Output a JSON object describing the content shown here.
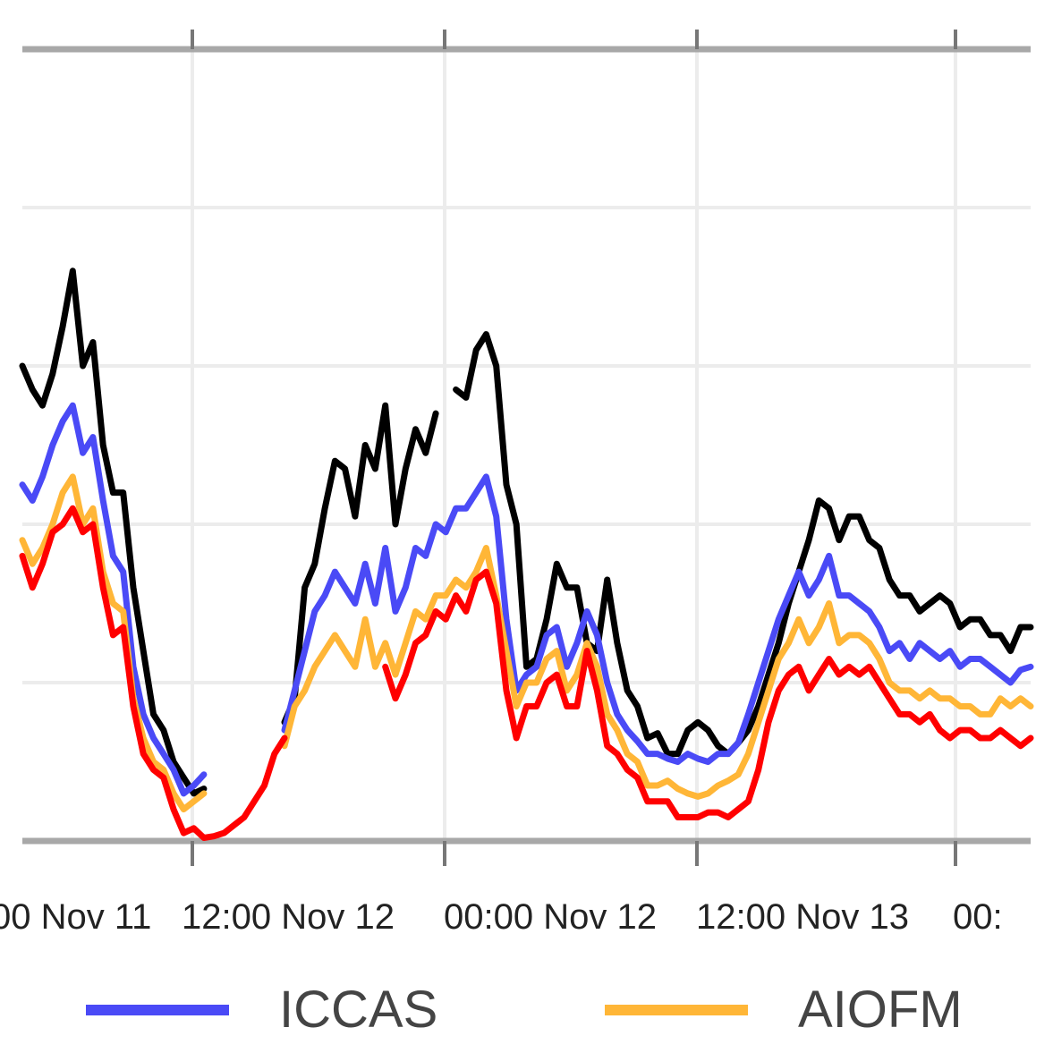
{
  "chart_data": {
    "type": "line",
    "title": "",
    "xlabel": "",
    "ylabel": "",
    "x_tick_labels": [
      "00 Nov 11",
      "12:00 Nov 12",
      "00:00 Nov 12",
      "12:00 Nov 13",
      "00:"
    ],
    "ylim": [
      0,
      5
    ],
    "xlim": [
      0,
      100
    ],
    "grid": true,
    "legend": {
      "placement": "bottom",
      "entries": [
        {
          "label": "ICCAS",
          "color": "#4a4af6"
        },
        {
          "label": "AIOFM",
          "color": "#ffb637"
        }
      ]
    },
    "series": [
      {
        "color": "#000000",
        "x": [
          0,
          1,
          2,
          3,
          4,
          5,
          6,
          7,
          8,
          9,
          10,
          11,
          12,
          13,
          14,
          15,
          16,
          17,
          18,
          19,
          20,
          21,
          22,
          23,
          24,
          25,
          26,
          27,
          28,
          29,
          30,
          31,
          32,
          33,
          34,
          35,
          36,
          37,
          38,
          39,
          40,
          41,
          42,
          43,
          44,
          45,
          46,
          47,
          48,
          49,
          50,
          51,
          52,
          53,
          54,
          55,
          56,
          57,
          58,
          59,
          60,
          61,
          62,
          63,
          64,
          65,
          66,
          67,
          68,
          69,
          70,
          71,
          72,
          73,
          74,
          75,
          76,
          77,
          78,
          79,
          80,
          81,
          82,
          83,
          84,
          85,
          86,
          87,
          88,
          89,
          90,
          91,
          92,
          93,
          94,
          95,
          96,
          97,
          98,
          99,
          100
        ],
        "y": [
          3.0,
          2.85,
          2.75,
          2.95,
          3.25,
          3.6,
          3.0,
          3.15,
          2.5,
          2.2,
          2.2,
          1.6,
          1.2,
          0.8,
          0.7,
          0.5,
          0.4,
          0.3,
          0.33,
          null,
          null,
          null,
          null,
          null,
          null,
          null,
          0.75,
          0.9,
          1.6,
          1.75,
          2.1,
          2.4,
          2.35,
          2.05,
          2.5,
          2.35,
          2.75,
          2.0,
          2.35,
          2.6,
          2.45,
          2.7,
          null,
          2.85,
          2.8,
          3.1,
          3.2,
          3.0,
          2.25,
          2.0,
          1.1,
          1.15,
          1.4,
          1.75,
          1.6,
          1.6,
          1.25,
          1.2,
          1.65,
          1.25,
          0.95,
          0.85,
          0.65,
          0.68,
          0.55,
          0.55,
          0.7,
          0.75,
          0.7,
          0.6,
          0.55,
          0.62,
          0.7,
          0.85,
          1.05,
          1.25,
          1.5,
          1.7,
          1.9,
          2.15,
          2.1,
          1.9,
          2.05,
          2.05,
          1.9,
          1.85,
          1.65,
          1.55,
          1.55,
          1.45,
          1.5,
          1.55,
          1.5,
          1.35,
          1.4,
          1.4,
          1.3,
          1.3,
          1.2,
          1.35,
          1.35
        ]
      },
      {
        "color": "#4a4af6",
        "name": "ICCAS",
        "x": [
          0,
          1,
          2,
          3,
          4,
          5,
          6,
          7,
          8,
          9,
          10,
          11,
          12,
          13,
          14,
          15,
          16,
          17,
          18,
          19,
          20,
          21,
          22,
          23,
          24,
          25,
          26,
          27,
          28,
          29,
          30,
          31,
          32,
          33,
          34,
          35,
          36,
          37,
          38,
          39,
          40,
          41,
          42,
          43,
          44,
          45,
          46,
          47,
          48,
          49,
          50,
          51,
          52,
          53,
          54,
          55,
          56,
          57,
          58,
          59,
          60,
          61,
          62,
          63,
          64,
          65,
          66,
          67,
          68,
          69,
          70,
          71,
          72,
          73,
          74,
          75,
          76,
          77,
          78,
          79,
          80,
          81,
          82,
          83,
          84,
          85,
          86,
          87,
          88,
          89,
          90,
          91,
          92,
          93,
          94,
          95,
          96,
          97,
          98,
          99,
          100
        ],
        "y": [
          2.25,
          2.15,
          2.3,
          2.5,
          2.65,
          2.75,
          2.45,
          2.55,
          2.15,
          1.8,
          1.7,
          1.1,
          0.8,
          0.65,
          0.55,
          0.45,
          0.3,
          0.35,
          0.42,
          null,
          null,
          null,
          null,
          null,
          null,
          null,
          0.7,
          0.95,
          1.2,
          1.45,
          1.55,
          1.7,
          1.6,
          1.5,
          1.75,
          1.5,
          1.85,
          1.45,
          1.6,
          1.85,
          1.8,
          2.0,
          1.95,
          2.1,
          2.1,
          2.2,
          2.3,
          2.05,
          1.4,
          0.95,
          1.05,
          1.1,
          1.3,
          1.35,
          1.1,
          1.25,
          1.45,
          1.3,
          1.0,
          0.8,
          0.7,
          0.63,
          0.55,
          0.55,
          0.52,
          0.5,
          0.55,
          0.52,
          0.5,
          0.55,
          0.55,
          0.62,
          0.8,
          1.0,
          1.2,
          1.4,
          1.55,
          1.7,
          1.55,
          1.65,
          1.8,
          1.55,
          1.55,
          1.5,
          1.45,
          1.35,
          1.2,
          1.25,
          1.15,
          1.25,
          1.2,
          1.15,
          1.2,
          1.1,
          1.15,
          1.15,
          1.1,
          1.05,
          1.0,
          1.08,
          1.1
        ]
      },
      {
        "color": "#ffb637",
        "name": "AIOFM",
        "x": [
          0,
          1,
          2,
          3,
          4,
          5,
          6,
          7,
          8,
          9,
          10,
          11,
          12,
          13,
          14,
          15,
          16,
          17,
          18,
          19,
          20,
          21,
          22,
          23,
          24,
          25,
          26,
          27,
          28,
          29,
          30,
          31,
          32,
          33,
          34,
          35,
          36,
          37,
          38,
          39,
          40,
          41,
          42,
          43,
          44,
          45,
          46,
          47,
          48,
          49,
          50,
          51,
          52,
          53,
          54,
          55,
          56,
          57,
          58,
          59,
          60,
          61,
          62,
          63,
          64,
          65,
          66,
          67,
          68,
          69,
          70,
          71,
          72,
          73,
          74,
          75,
          76,
          77,
          78,
          79,
          80,
          81,
          82,
          83,
          84,
          85,
          86,
          87,
          88,
          89,
          90,
          91,
          92,
          93,
          94,
          95,
          96,
          97,
          98,
          99,
          100
        ],
        "y": [
          1.9,
          1.75,
          1.85,
          2.0,
          2.2,
          2.3,
          2.0,
          2.1,
          1.7,
          1.5,
          1.45,
          0.9,
          0.65,
          0.5,
          0.45,
          0.3,
          0.2,
          0.25,
          0.3,
          null,
          null,
          null,
          null,
          null,
          null,
          null,
          0.6,
          0.85,
          0.95,
          1.1,
          1.2,
          1.3,
          1.2,
          1.1,
          1.4,
          1.1,
          1.25,
          1.05,
          1.25,
          1.45,
          1.4,
          1.55,
          1.55,
          1.65,
          1.6,
          1.7,
          1.85,
          1.55,
          1.2,
          0.85,
          1.0,
          1.0,
          1.15,
          1.2,
          0.95,
          1.05,
          1.25,
          1.1,
          0.8,
          0.7,
          0.55,
          0.5,
          0.35,
          0.35,
          0.38,
          0.33,
          0.3,
          0.28,
          0.3,
          0.35,
          0.38,
          0.42,
          0.55,
          0.75,
          0.95,
          1.15,
          1.25,
          1.4,
          1.25,
          1.35,
          1.5,
          1.25,
          1.3,
          1.3,
          1.25,
          1.15,
          1.0,
          0.95,
          0.95,
          0.9,
          0.95,
          0.9,
          0.9,
          0.85,
          0.85,
          0.8,
          0.8,
          0.9,
          0.85,
          0.9,
          0.85
        ]
      },
      {
        "color": "#ff0000",
        "x": [
          0,
          1,
          2,
          3,
          4,
          5,
          6,
          7,
          8,
          9,
          10,
          11,
          12,
          13,
          14,
          15,
          16,
          17,
          18,
          19,
          20,
          21,
          22,
          23,
          24,
          25,
          26,
          27,
          28,
          29,
          30,
          31,
          32,
          33,
          34,
          35,
          36,
          37,
          38,
          39,
          40,
          41,
          42,
          43,
          44,
          45,
          46,
          47,
          48,
          49,
          50,
          51,
          52,
          53,
          54,
          55,
          56,
          57,
          58,
          59,
          60,
          61,
          62,
          63,
          64,
          65,
          66,
          67,
          68,
          69,
          70,
          71,
          72,
          73,
          74,
          75,
          76,
          77,
          78,
          79,
          80,
          81,
          82,
          83,
          84,
          85,
          86,
          87,
          88,
          89,
          90,
          91,
          92,
          93,
          94,
          95,
          96,
          97,
          98,
          99,
          100
        ],
        "y": [
          1.8,
          1.6,
          1.75,
          1.95,
          2.0,
          2.1,
          1.95,
          2.0,
          1.6,
          1.3,
          1.35,
          0.85,
          0.55,
          0.45,
          0.4,
          0.2,
          0.05,
          0.08,
          0.02,
          0.03,
          0.05,
          0.1,
          0.15,
          0.25,
          0.35,
          0.55,
          0.65,
          null,
          null,
          null,
          null,
          null,
          null,
          null,
          null,
          null,
          1.1,
          0.9,
          1.05,
          1.25,
          1.3,
          1.45,
          1.4,
          1.55,
          1.45,
          1.65,
          1.7,
          1.5,
          0.95,
          0.65,
          0.85,
          0.85,
          1.0,
          1.05,
          0.85,
          0.85,
          1.2,
          0.95,
          0.6,
          0.55,
          0.45,
          0.4,
          0.25,
          0.25,
          0.25,
          0.15,
          0.15,
          0.15,
          0.18,
          0.18,
          0.15,
          0.2,
          0.25,
          0.45,
          0.75,
          0.95,
          1.05,
          1.1,
          0.95,
          1.05,
          1.15,
          1.05,
          1.1,
          1.05,
          1.1,
          1.0,
          0.9,
          0.8,
          0.8,
          0.75,
          0.8,
          0.7,
          0.65,
          0.7,
          0.7,
          0.65,
          0.65,
          0.7,
          0.65,
          0.6,
          0.65
        ]
      }
    ]
  }
}
